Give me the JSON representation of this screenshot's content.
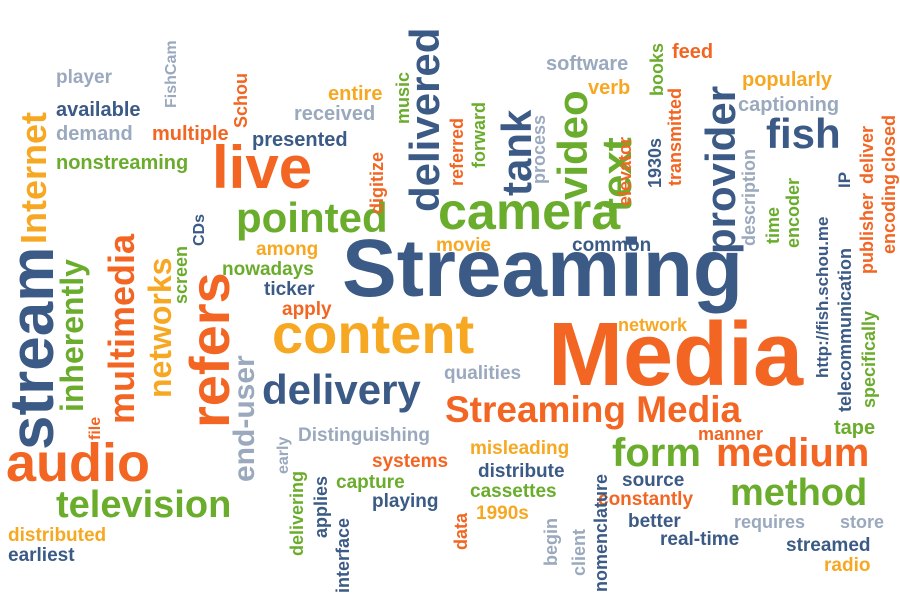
{
  "words": {
    "streaming": "Streaming",
    "media": "Media",
    "content": "content",
    "streaming_media": "Streaming Media",
    "camera": "camera",
    "audio": "audio",
    "television": "television",
    "live": "live",
    "pointed": "pointed",
    "delivery": "delivery",
    "form": "form",
    "medium": "medium",
    "method": "method",
    "fish": "fish",
    "stream": "stream",
    "refers": "refers",
    "multimedia": "multimedia",
    "inherently": "inherently",
    "internet": "Internet",
    "networks": "networks",
    "end_user": "end-user",
    "delivered": "delivered",
    "tank": "tank",
    "video": "video",
    "text": "text",
    "provider": "provider",
    "player": "player",
    "available": "available",
    "demand": "demand",
    "multiple": "multiple",
    "nonstreaming": "nonstreaming",
    "presented": "presented",
    "received": "received",
    "entire": "entire",
    "music": "music",
    "digitize": "digitize",
    "referred": "referred",
    "forward": "forward",
    "process": "process",
    "software": "software",
    "books": "books",
    "feed": "feed",
    "verb": "verb",
    "popularly": "popularly",
    "captioning": "captioning",
    "deliver": "deliver",
    "closed": "closed",
    "elevator": "elevator",
    "transmitted": "transmitted",
    "1930s": "1930s",
    "description": "description",
    "time": "time",
    "encoder": "encoder",
    "encoding": "encoding",
    "publisher": "publisher",
    "ip": "IP",
    "telecommunication": "telecommunication",
    "url": "http://fish.schou.me",
    "specifically": "specifically",
    "fishcam": "FishCam",
    "schou": "Schou",
    "cds": "CDs",
    "screen": "screen",
    "among": "among",
    "nowadays": "nowadays",
    "ticker": "ticker",
    "apply": "apply",
    "movie": "movie",
    "common": "common",
    "network": "network",
    "qualities": "qualities",
    "distinguishing": "Distinguishing",
    "early": "early",
    "file": "file",
    "misleading": "misleading",
    "systems": "systems",
    "distribute": "distribute",
    "capture": "capture",
    "playing": "playing",
    "cassettes": "cassettes",
    "1990s": "1990s",
    "data": "data",
    "begin": "begin",
    "client": "client",
    "nomenclature": "nomenclature",
    "source": "source",
    "constantly": "constantly",
    "better": "better",
    "real_time": "real-time",
    "requires": "requires",
    "store": "store",
    "streamed": "streamed",
    "radio": "radio",
    "manner": "manner",
    "tape": "tape",
    "distributed": "distributed",
    "earliest": "earliest",
    "delivering": "delivering",
    "applies": "applies",
    "interface": "interface"
  },
  "colors": {
    "blue": "#3b5a85",
    "orange": "#f26522",
    "green": "#6aac2b",
    "yellow": "#f7a823",
    "gray": "#9aa9bd"
  }
}
